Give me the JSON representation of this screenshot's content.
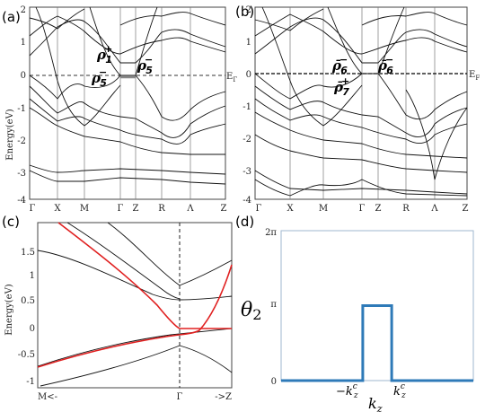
{
  "panels": {
    "a": {
      "label": "(a)",
      "ylabel": "Energy(eV)",
      "yticks": [
        "2",
        "1",
        "0",
        "-1",
        "-2",
        "-3",
        "-4"
      ],
      "xticks": [
        "Γ",
        "X",
        "M",
        "Γ",
        "Z",
        "R",
        "Λ",
        "Z"
      ],
      "fermi": "E",
      "fermi_sub": "Γ",
      "labels": [
        {
          "base": "ρ",
          "sup": "+",
          "sub": "1"
        },
        {
          "base": "ρ",
          "sup": "−",
          "sub": "5"
        },
        {
          "base": "ρ",
          "sup": "−",
          "sub": "5"
        }
      ]
    },
    "b": {
      "label": "(b)",
      "yticks": [
        "2",
        "1",
        "0",
        "-1",
        "-2",
        "-3",
        "-4"
      ],
      "xticks": [
        "Γ",
        "X",
        "M",
        "Γ",
        "Z",
        "R",
        "Λ",
        "Z"
      ],
      "fermi": "E",
      "fermi_sub": "F",
      "labels": [
        {
          "base": "ρ̄",
          "sup": "−",
          "sub": "6"
        },
        {
          "base": "ρ̄",
          "sup": "−",
          "sub": "6"
        },
        {
          "base": "ρ̄",
          "sup": "+",
          "sub": "7"
        }
      ]
    },
    "c": {
      "label": "(c)",
      "ylabel": "Energy(eV)",
      "yticks": [
        "1.5",
        "1",
        "0.5",
        "0",
        "-0.5",
        "-1"
      ],
      "xticks": [
        "M<-",
        "Γ",
        "->Z"
      ]
    },
    "d": {
      "label": "(d)",
      "ylabel": "θ",
      "ylabel_sub": "2",
      "yticks": [
        "2π",
        "π",
        "0"
      ],
      "xlabel": "k",
      "xlabel_sub": "z",
      "xticks": [
        {
          "base": "−k",
          "sup": "c",
          "sub": "z"
        },
        {
          "base": "k",
          "sup": "c",
          "sub": "z"
        }
      ]
    }
  },
  "chart_data": [
    {
      "type": "line",
      "panel": "d",
      "title": "",
      "xlabel": "k_z",
      "ylabel": "θ_2",
      "x": [
        -1,
        -0.15,
        -0.15,
        0.15,
        0.15,
        1
      ],
      "series": [
        {
          "values": [
            0,
            0,
            1,
            1,
            0,
            0
          ]
        }
      ],
      "ylim": [
        0,
        2
      ],
      "ytick_units": "π",
      "color": "#2e7ab8"
    }
  ]
}
